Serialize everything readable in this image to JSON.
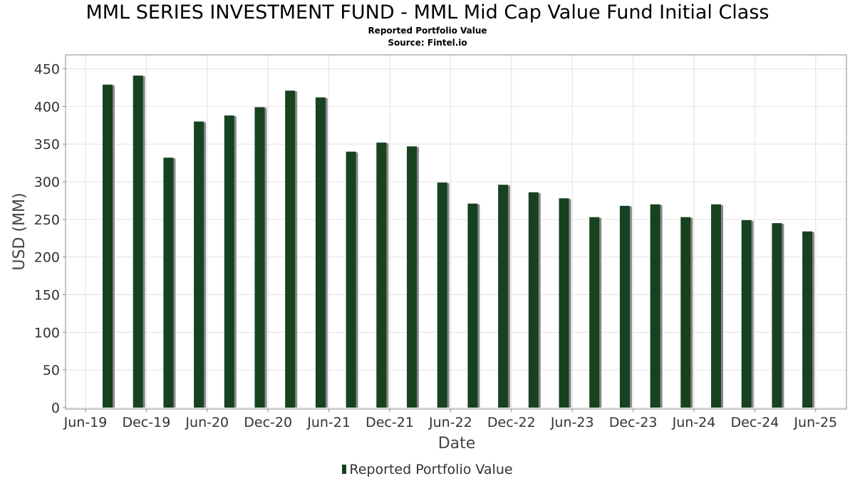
{
  "chart_data": {
    "type": "bar",
    "title": "MML SERIES INVESTMENT FUND - MML Mid Cap Value Fund Initial Class",
    "subtitle": "Reported Portfolio Value",
    "source": "Source: Fintel.io",
    "xlabel": "Date",
    "ylabel": "USD (MM)",
    "ylim": [
      0,
      460
    ],
    "yticks": [
      0,
      50,
      100,
      150,
      200,
      250,
      300,
      350,
      400,
      450
    ],
    "xticks": [
      "Jun-19",
      "Dec-19",
      "Jun-20",
      "Dec-20",
      "Jun-21",
      "Dec-21",
      "Jun-22",
      "Dec-22",
      "Jun-23",
      "Dec-23",
      "Jun-24",
      "Dec-24",
      "Jun-25"
    ],
    "grid": true,
    "legend_position": "bottom",
    "series": [
      {
        "name": "Reported Portfolio Value",
        "color": "#17421f",
        "values": [
          429,
          441,
          332,
          380,
          388,
          399,
          421,
          412,
          340,
          352,
          347,
          299,
          271,
          296,
          286,
          278,
          253,
          268,
          270,
          253,
          270,
          249,
          245,
          234
        ]
      }
    ]
  }
}
